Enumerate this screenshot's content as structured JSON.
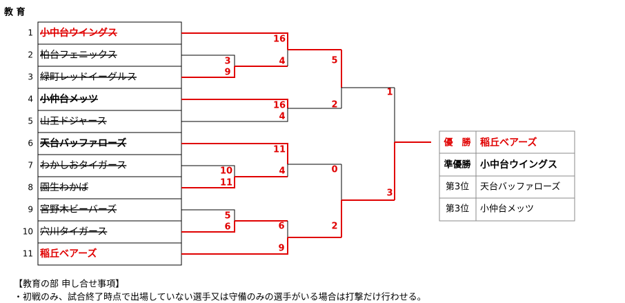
{
  "title": "教 育",
  "teams": [
    {
      "seed": 1,
      "name": "小中台ウイングス"
    },
    {
      "seed": 2,
      "name": "柏台フェニックス"
    },
    {
      "seed": 3,
      "name": "緑町レッドイーグルス"
    },
    {
      "seed": 4,
      "name": "小仲台メッツ"
    },
    {
      "seed": 5,
      "name": "山王ドジャース"
    },
    {
      "seed": 6,
      "name": "天台バッファローズ"
    },
    {
      "seed": 7,
      "name": "わかしおタイガース"
    },
    {
      "seed": 8,
      "name": "園生わかば"
    },
    {
      "seed": 9,
      "name": "宮野木ビーバーズ"
    },
    {
      "seed": 10,
      "name": "穴川タイガース"
    },
    {
      "seed": 11,
      "name": "稲丘ベアーズ"
    }
  ],
  "scores": [
    16,
    3,
    9,
    4,
    16,
    4,
    5,
    2,
    1,
    11,
    10,
    11,
    4,
    5,
    6,
    6,
    9,
    0,
    2,
    3
  ],
  "results": [
    {
      "rank": "優　勝",
      "team": "稲丘ベアーズ"
    },
    {
      "rank": "準優勝",
      "team": "小中台ウイングス"
    },
    {
      "rank": "第3位",
      "team": "天台バッファローズ"
    },
    {
      "rank": "第3位",
      "team": "小仲台メッツ"
    }
  ],
  "notes": {
    "heading": "【教育の部 申し合せ事項】",
    "items": [
      "・初戦のみ、試合終了時点で出場していない選手又は守備のみの選手がいる場合は打撃だけ行わせる。"
    ]
  }
}
